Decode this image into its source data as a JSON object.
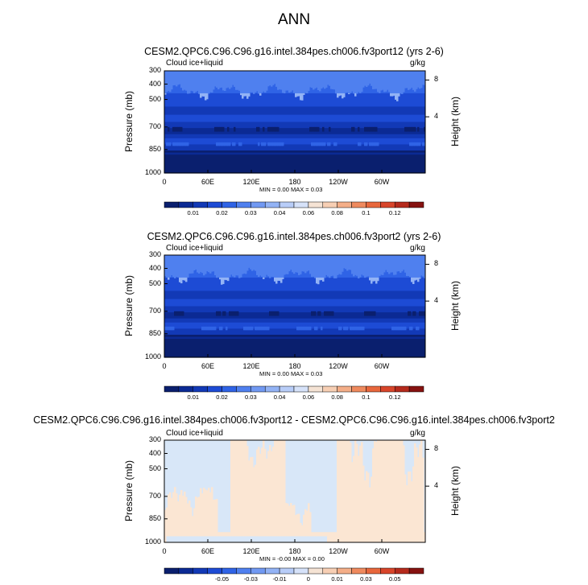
{
  "title": "ANN",
  "colors": {
    "pos_scale": [
      "#0a1f6e",
      "#0b2a94",
      "#1239b6",
      "#1d4bd5",
      "#2f63e6",
      "#4f80ef",
      "#7199f2",
      "#93b3f5",
      "#b8cdf8",
      "#d6e2f9",
      "#f5e3d4",
      "#f7cfb4",
      "#f4ae88",
      "#ef8a5e",
      "#e8673c",
      "#d8452a",
      "#b52a1c",
      "#861210"
    ],
    "diff_blue": "#d8e7f8",
    "diff_peach": "#fbe6d3"
  },
  "chart_data": [
    {
      "type": "heatmap",
      "title": "CESM2.QPC6.C96.C96.g16.intel.384pes.ch006.fv3port12 (yrs 2-6)",
      "field": "Cloud ice+liquid",
      "units": "g/kg",
      "ylabel": "Pressure (mb)",
      "y2label": "Height (km)",
      "y_ticks": [
        "300",
        "400",
        "500",
        "700",
        "850",
        "1000"
      ],
      "y2_ticks": [
        "8",
        "4"
      ],
      "x_ticks": [
        "0",
        "60E",
        "120E",
        "180",
        "120W",
        "60W"
      ],
      "minmax": "MIN =   0.00  MAX =   0.03",
      "colorbar_labels": [
        "0.01",
        "0.02",
        "0.03",
        "0.04",
        "0.06",
        "0.08",
        "0.1",
        "0.12"
      ]
    },
    {
      "type": "heatmap",
      "title": "CESM2.QPC6.C96.C96.g16.intel.384pes.ch006.fv3port2 (yrs 2-6)",
      "field": "Cloud ice+liquid",
      "units": "g/kg",
      "ylabel": "Pressure (mb)",
      "y2label": "Height (km)",
      "y_ticks": [
        "300",
        "400",
        "500",
        "700",
        "850",
        "1000"
      ],
      "y2_ticks": [
        "8",
        "4"
      ],
      "x_ticks": [
        "0",
        "60E",
        "120E",
        "180",
        "120W",
        "60W"
      ],
      "minmax": "MIN =   0.00  MAX =   0.03",
      "colorbar_labels": [
        "0.01",
        "0.02",
        "0.03",
        "0.04",
        "0.06",
        "0.08",
        "0.1",
        "0.12"
      ]
    },
    {
      "type": "heatmap",
      "title": "CESM2.QPC6.C96.C96.g16.intel.384pes.ch006.fv3port12 - CESM2.QPC6.C96.C96.g16.intel.384pes.ch006.fv3port2",
      "field": "Cloud ice+liquid",
      "units": "g/kg",
      "ylabel": "Pressure (mb)",
      "y2label": "Height (km)",
      "y_ticks": [
        "300",
        "400",
        "500",
        "700",
        "850",
        "1000"
      ],
      "y2_ticks": [
        "8",
        "4"
      ],
      "x_ticks": [
        "0",
        "60E",
        "120E",
        "180",
        "120W",
        "60W"
      ],
      "minmax": "MIN =  -0.00  MAX =   0.00",
      "colorbar_labels": [
        "-0.05",
        "-0.03",
        "-0.01",
        "0",
        "0.01",
        "0.03",
        "0.05"
      ]
    }
  ]
}
